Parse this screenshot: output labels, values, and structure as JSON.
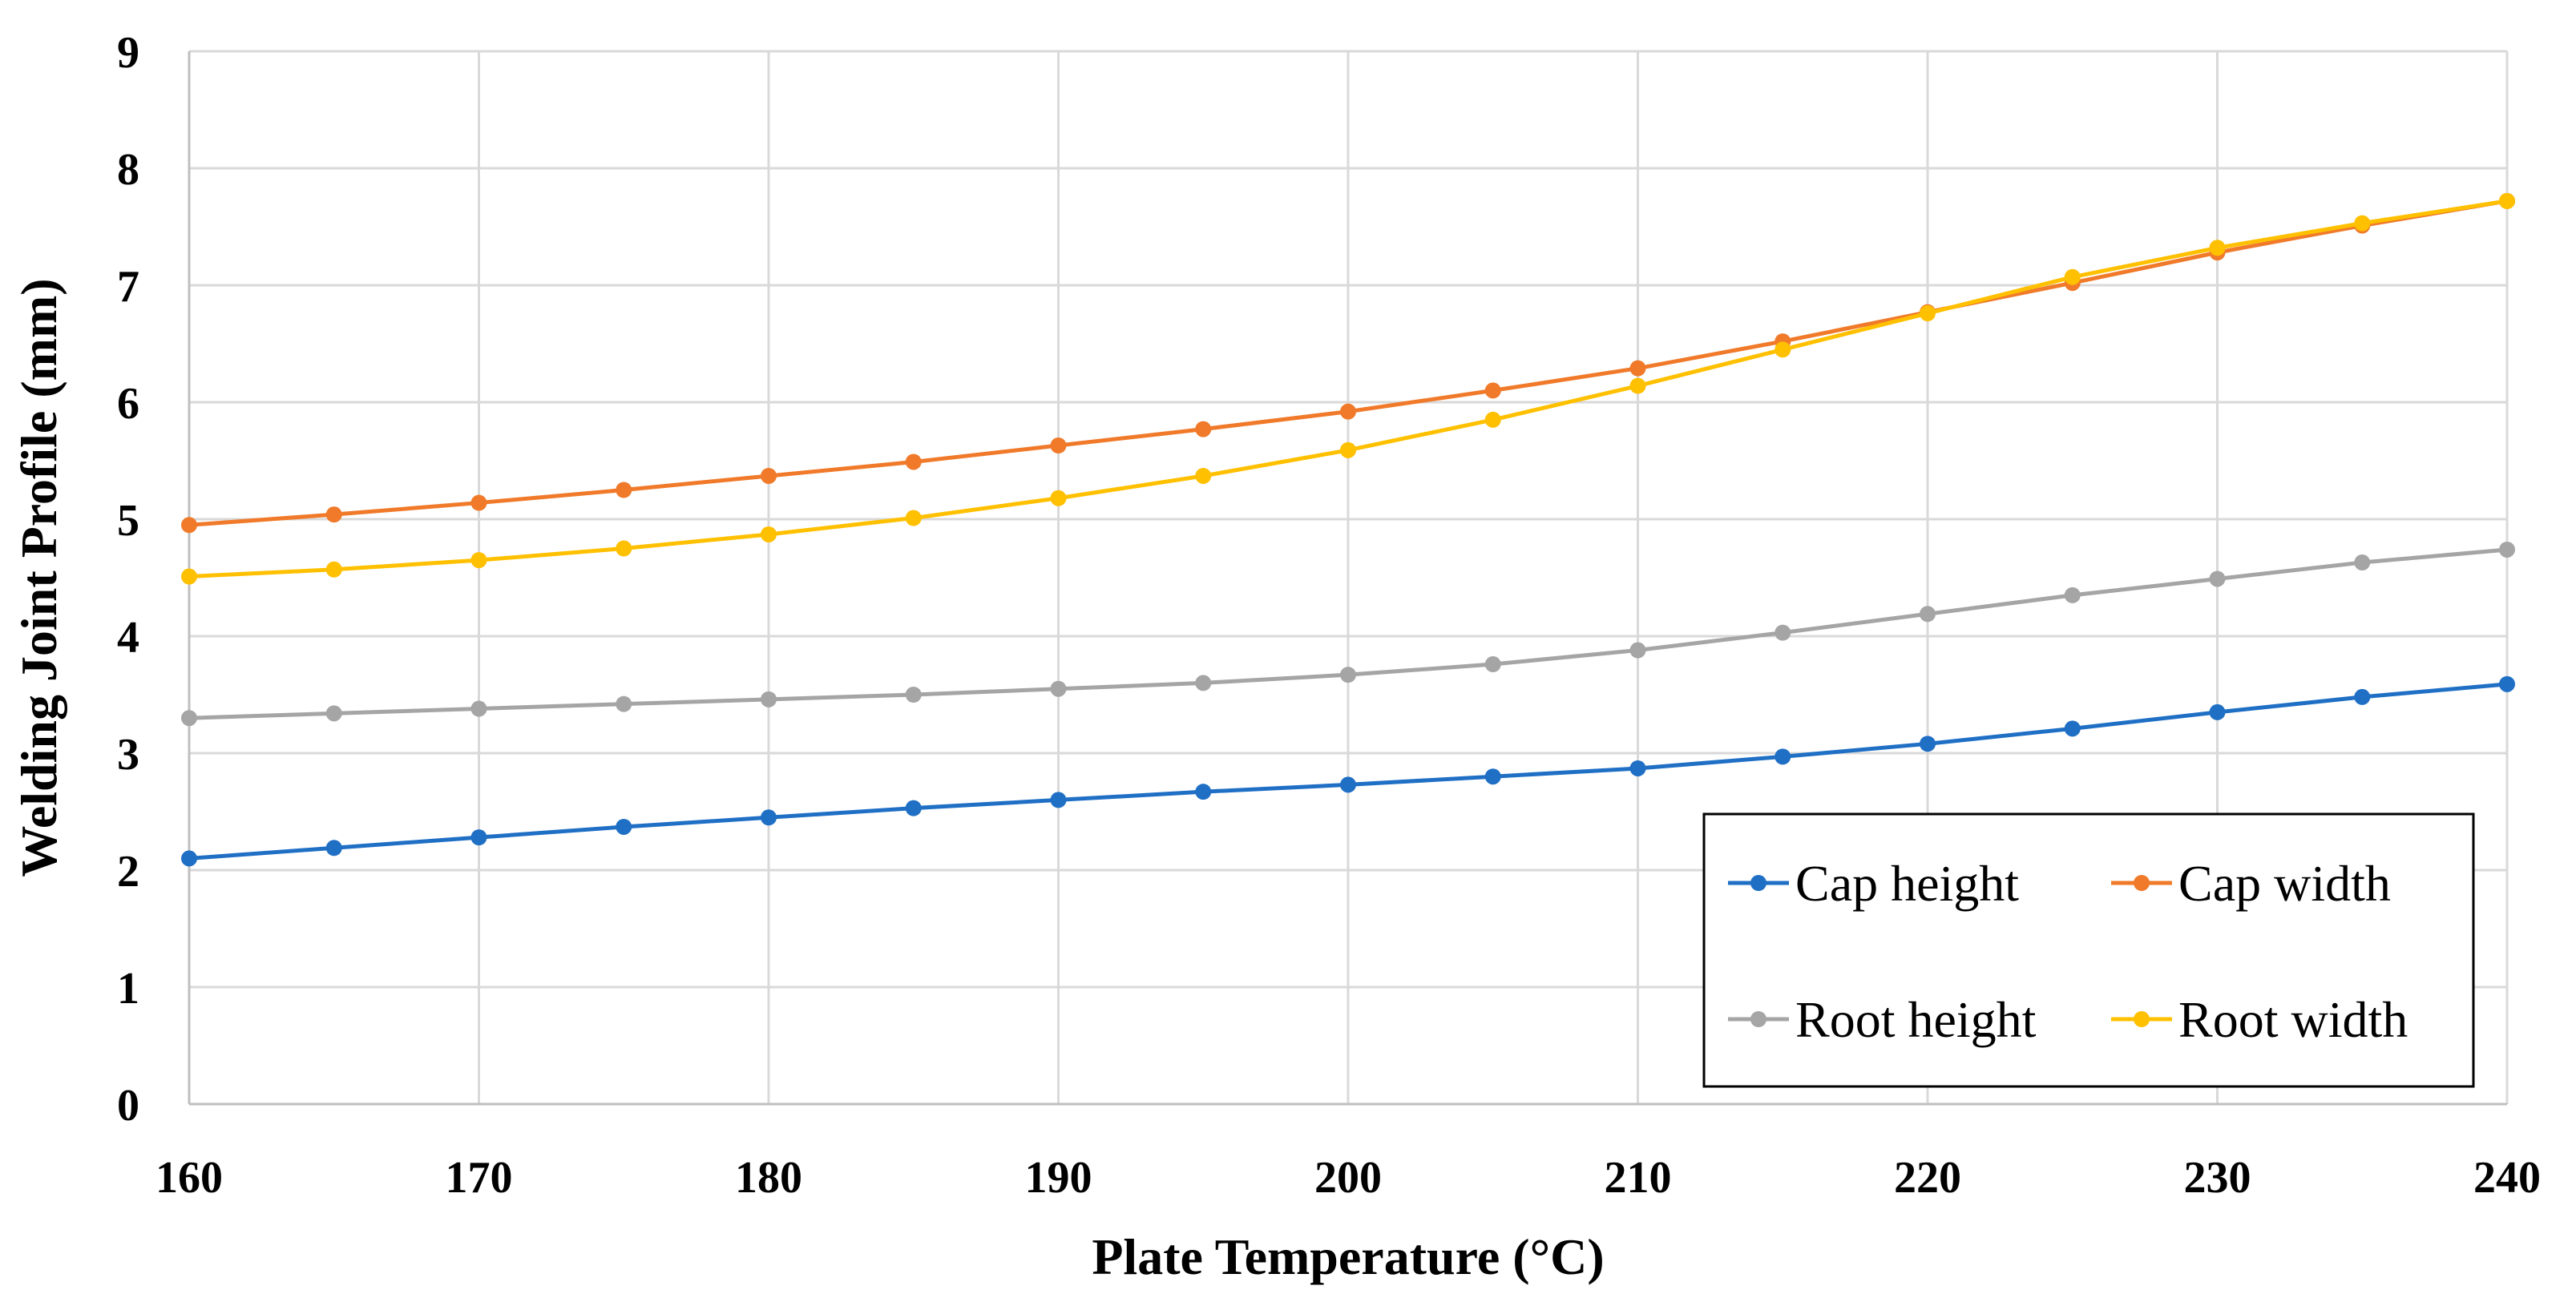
{
  "chart_data": {
    "type": "line",
    "xlabel": "Plate Temperature (°C)",
    "ylabel": "Welding Joint Profile (mm)",
    "xlim": [
      160,
      240
    ],
    "ylim": [
      0,
      9
    ],
    "x_ticks": [
      160,
      170,
      180,
      190,
      200,
      210,
      220,
      230,
      240
    ],
    "y_ticks": [
      0,
      1,
      2,
      3,
      4,
      5,
      6,
      7,
      8,
      9
    ],
    "grid": true,
    "legend_position": "bottom-right",
    "x": [
      160,
      165,
      170,
      175,
      180,
      185,
      190,
      195,
      200,
      205,
      210,
      215,
      220,
      225,
      230,
      235,
      240
    ],
    "series": [
      {
        "name": "Cap height",
        "color": "#1f6fc5",
        "values": [
          2.1,
          2.19,
          2.28,
          2.37,
          2.45,
          2.53,
          2.6,
          2.67,
          2.73,
          2.8,
          2.87,
          2.97,
          3.08,
          3.21,
          3.35,
          3.48,
          3.59
        ]
      },
      {
        "name": "Cap width",
        "color": "#f07a2a",
        "values": [
          4.95,
          5.04,
          5.14,
          5.25,
          5.37,
          5.49,
          5.63,
          5.77,
          5.92,
          6.1,
          6.29,
          6.52,
          6.77,
          7.02,
          7.28,
          7.51,
          7.72
        ]
      },
      {
        "name": "Root height",
        "color": "#a5a5a5",
        "values": [
          3.3,
          3.34,
          3.38,
          3.42,
          3.46,
          3.5,
          3.55,
          3.6,
          3.67,
          3.76,
          3.88,
          4.03,
          4.19,
          4.35,
          4.49,
          4.63,
          4.74
        ]
      },
      {
        "name": "Root width",
        "color": "#ffc000",
        "values": [
          4.51,
          4.57,
          4.65,
          4.75,
          4.87,
          5.01,
          5.18,
          5.37,
          5.59,
          5.85,
          6.14,
          6.45,
          6.76,
          7.07,
          7.32,
          7.53,
          7.72
        ]
      }
    ]
  }
}
